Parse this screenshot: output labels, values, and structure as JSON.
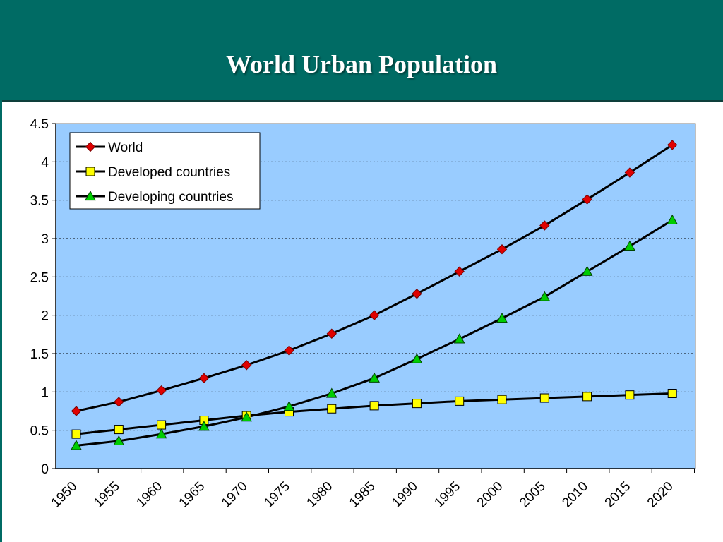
{
  "slide": {
    "title": "World Urban Population"
  },
  "colors": {
    "header_bg": "#006b64",
    "plot_bg": "#99ccff",
    "line": "#000000",
    "world_marker": "#e00000",
    "developed_marker": "#ffff00",
    "developing_marker": "#00cc00"
  },
  "chart_data": {
    "type": "line",
    "title": "",
    "xlabel": "",
    "ylabel": "",
    "ylim": [
      0,
      4.5
    ],
    "y_ticks": [
      "0",
      "0.5",
      "1",
      "1.5",
      "2",
      "2.5",
      "3",
      "3.5",
      "4",
      "4.5"
    ],
    "categories": [
      "1950",
      "1955",
      "1960",
      "1965",
      "1970",
      "1975",
      "1980",
      "1985",
      "1990",
      "1995",
      "2000",
      "2005",
      "2010",
      "2015",
      "2020"
    ],
    "grid": true,
    "legend_position": "top-left",
    "series": [
      {
        "name": "World",
        "marker": "diamond",
        "values": [
          0.75,
          0.87,
          1.02,
          1.18,
          1.35,
          1.54,
          1.76,
          2.0,
          2.28,
          2.57,
          2.86,
          3.17,
          3.51,
          3.86,
          4.22
        ]
      },
      {
        "name": "Developed countries",
        "marker": "square",
        "values": [
          0.45,
          0.51,
          0.57,
          0.63,
          0.69,
          0.74,
          0.78,
          0.82,
          0.85,
          0.88,
          0.9,
          0.92,
          0.94,
          0.96,
          0.98
        ]
      },
      {
        "name": "Developing countries",
        "marker": "triangle",
        "values": [
          0.3,
          0.36,
          0.45,
          0.55,
          0.67,
          0.81,
          0.98,
          1.18,
          1.43,
          1.69,
          1.96,
          2.24,
          2.57,
          2.9,
          3.24
        ]
      }
    ]
  }
}
